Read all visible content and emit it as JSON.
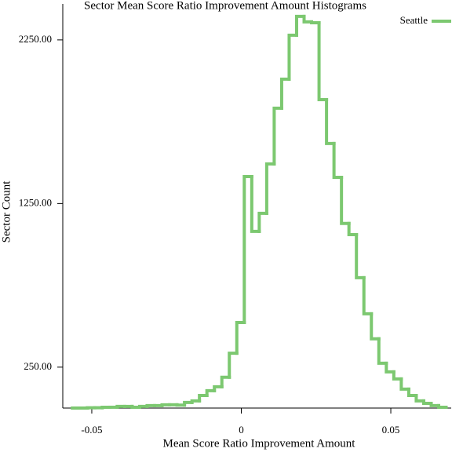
{
  "chart_data": {
    "type": "step-histogram",
    "title": "Sector Mean Score Ratio Improvement Amount Histograms",
    "x_label": "Mean Score Ratio Improvement Amount",
    "y_label": "Sector Count",
    "bins": [
      -0.0565,
      -0.054,
      -0.0515,
      -0.049,
      -0.0465,
      -0.044,
      -0.0415,
      -0.039,
      -0.0365,
      -0.034,
      -0.0315,
      -0.029,
      -0.0265,
      -0.024,
      -0.0215,
      -0.019,
      -0.0165,
      -0.014,
      -0.0115,
      -0.009,
      -0.0065,
      -0.004,
      -0.0015,
      0.001,
      0.0035,
      0.006,
      0.0085,
      0.011,
      0.0135,
      0.016,
      0.0185,
      0.021,
      0.0235,
      0.026,
      0.0285,
      0.031,
      0.0335,
      0.036,
      0.0385,
      0.041,
      0.0435,
      0.046,
      0.0485,
      0.051,
      0.0535,
      0.056,
      0.0585,
      0.061,
      0.0635,
      0.066,
      0.0685
    ],
    "series": [
      {
        "name": "Seattle",
        "color": "#7cc870",
        "values": [
          0,
          0,
          2,
          2,
          5,
          5,
          10,
          10,
          5,
          10,
          15,
          15,
          20,
          20,
          18,
          34,
          44,
          77,
          106,
          130,
          188,
          335,
          523,
          1415,
          1080,
          1190,
          1492,
          1833,
          2010,
          2279,
          2394,
          2360,
          2355,
          1885,
          1617,
          1410,
          1128,
          1060,
          797,
          576,
          423,
          274,
          221,
          178,
          116,
          77,
          44,
          29,
          15,
          5
        ]
      }
    ],
    "xlim": [
      -0.0597,
      0.0702
    ],
    "ylim": [
      0,
      2470
    ],
    "xticks": [
      -0.05,
      0,
      0.05
    ],
    "yticks": [
      {
        "value": 250,
        "label": "250.00"
      },
      {
        "value": 1250,
        "label": "1250.00"
      },
      {
        "value": 2250,
        "label": "2250.00"
      }
    ],
    "legend": "top-right"
  }
}
